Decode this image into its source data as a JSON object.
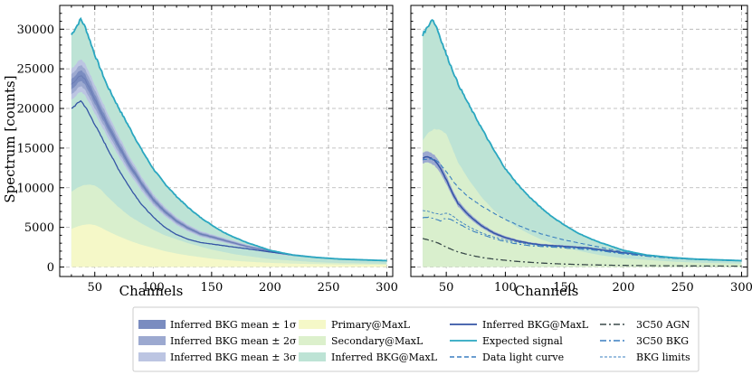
{
  "chart_data": [
    {
      "type": "area",
      "panel": "left",
      "xlabel": "Channels",
      "ylabel": "Spectrum [counts]",
      "xlim": [
        20,
        305
      ],
      "ylim": [
        -1200,
        33000
      ],
      "xticks": [
        50,
        100,
        150,
        200,
        250,
        300
      ],
      "yticks": [
        0,
        5000,
        10000,
        15000,
        20000,
        25000,
        30000
      ],
      "grid": true,
      "series": [
        {
          "name": "Expected signal",
          "x": [
            30,
            35,
            38,
            42,
            50,
            60,
            70,
            80,
            90,
            100,
            110,
            120,
            130,
            140,
            150,
            160,
            170,
            180,
            190,
            200,
            210,
            220,
            240,
            260,
            280,
            300
          ],
          "values": [
            29300,
            30500,
            31300,
            30200,
            26800,
            23100,
            20200,
            17500,
            14800,
            12400,
            10500,
            8900,
            7500,
            6300,
            5300,
            4400,
            3700,
            3100,
            2600,
            2100,
            1800,
            1500,
            1200,
            1000,
            900,
            800
          ]
        },
        {
          "name": "Inferred BKG@MaxL",
          "x": [
            30,
            35,
            38,
            42,
            50,
            60,
            70,
            80,
            90,
            100,
            110,
            120,
            130,
            140,
            150,
            160,
            170,
            180,
            190,
            200,
            210,
            220,
            240,
            260,
            280,
            300
          ],
          "values": [
            20000,
            20600,
            21000,
            20200,
            18000,
            15200,
            12400,
            10000,
            7900,
            6300,
            5000,
            4100,
            3500,
            3100,
            2900,
            2700,
            2500,
            2300,
            2100,
            1900,
            1700,
            1500,
            1200,
            1000,
            900,
            800
          ]
        },
        {
          "name": "Inferred BKG mean",
          "x": [
            30,
            35,
            38,
            42,
            50,
            60,
            70,
            80,
            90,
            100,
            110,
            120,
            130,
            140,
            150,
            160,
            170,
            180,
            190,
            200,
            210,
            220,
            240,
            260,
            280,
            300
          ],
          "values": [
            23000,
            23800,
            24200,
            23600,
            21200,
            18200,
            15400,
            12800,
            10500,
            8500,
            7000,
            5800,
            4900,
            4200,
            3800,
            3400,
            3000,
            2600,
            2300,
            2000,
            1700,
            1500,
            1200,
            1000,
            900,
            800
          ]
        },
        {
          "name": "Secondary@MaxL",
          "x": [
            30,
            35,
            40,
            45,
            50,
            55,
            60,
            70,
            80,
            90,
            100,
            110,
            120,
            130,
            140,
            150,
            160,
            170,
            180,
            190,
            200,
            220,
            240,
            260,
            280,
            300
          ],
          "values": [
            9500,
            10000,
            10300,
            10400,
            10300,
            9800,
            9000,
            7600,
            6400,
            5500,
            4700,
            4000,
            3500,
            3000,
            2600,
            2200,
            1900,
            1600,
            1400,
            1200,
            1000,
            800,
            600,
            500,
            450,
            400
          ]
        },
        {
          "name": "Primary@MaxL",
          "x": [
            30,
            35,
            40,
            45,
            50,
            55,
            60,
            70,
            80,
            90,
            100,
            110,
            120,
            130,
            140,
            150,
            160,
            170,
            180,
            190,
            200,
            220,
            240,
            260,
            280,
            300
          ],
          "values": [
            4800,
            5100,
            5300,
            5400,
            5300,
            5000,
            4600,
            3900,
            3300,
            2800,
            2400,
            2000,
            1700,
            1450,
            1250,
            1050,
            900,
            780,
            680,
            600,
            520,
            420,
            360,
            320,
            300,
            280
          ]
        }
      ]
    },
    {
      "type": "area",
      "panel": "right",
      "xlabel": "Channels",
      "xlim": [
        20,
        305
      ],
      "ylim": [
        -1200,
        33000
      ],
      "xticks": [
        50,
        100,
        150,
        200,
        250,
        300
      ],
      "yticks": [
        0,
        5000,
        10000,
        15000,
        20000,
        25000,
        30000
      ],
      "grid": true,
      "series": [
        {
          "name": "Expected signal",
          "x": [
            30,
            35,
            38,
            42,
            50,
            60,
            70,
            80,
            90,
            100,
            110,
            120,
            130,
            140,
            150,
            160,
            170,
            180,
            190,
            200,
            210,
            220,
            240,
            260,
            280,
            300
          ],
          "values": [
            29300,
            30500,
            31300,
            30200,
            26800,
            23100,
            20200,
            17500,
            14800,
            12400,
            10500,
            8900,
            7500,
            6300,
            5300,
            4400,
            3700,
            3100,
            2600,
            2100,
            1800,
            1500,
            1200,
            1000,
            900,
            800
          ]
        },
        {
          "name": "Secondary@MaxL",
          "x": [
            30,
            35,
            40,
            45,
            50,
            55,
            60,
            70,
            80,
            90,
            100,
            110,
            120,
            130,
            140,
            150,
            160,
            170,
            180,
            190,
            200,
            220,
            240,
            260,
            280,
            300
          ],
          "values": [
            16000,
            17000,
            17400,
            17300,
            16800,
            15000,
            13200,
            10800,
            8800,
            7200,
            6000,
            5000,
            4200,
            3500,
            3000,
            2500,
            2100,
            1800,
            1500,
            1300,
            1100,
            900,
            700,
            550,
            480,
            420
          ]
        },
        {
          "name": "Inferred BKG@MaxL",
          "x": [
            30,
            35,
            40,
            45,
            50,
            55,
            60,
            70,
            80,
            90,
            100,
            110,
            120,
            130,
            140,
            150,
            160,
            170,
            180,
            190,
            200,
            220,
            240,
            260,
            280,
            300
          ],
          "values": [
            13800,
            13900,
            13500,
            12500,
            11000,
            9400,
            8000,
            6400,
            5200,
            4300,
            3700,
            3300,
            3000,
            2800,
            2700,
            2600,
            2500,
            2400,
            2200,
            2000,
            1800,
            1500,
            1200,
            1000,
            900,
            800
          ]
        },
        {
          "name": "Data light curve",
          "x": [
            30,
            35,
            40,
            45,
            50,
            55,
            60,
            70,
            80,
            90,
            100,
            110,
            120,
            130,
            140,
            150,
            160,
            170,
            180,
            190,
            200,
            220,
            240,
            260,
            280,
            300
          ],
          "values": [
            13500,
            13700,
            13600,
            13000,
            12000,
            11000,
            10000,
            8700,
            7700,
            6800,
            6000,
            5300,
            4700,
            4200,
            3800,
            3400,
            3100,
            2800,
            2500,
            2200,
            1900,
            1500,
            1200,
            1000,
            900,
            800
          ]
        },
        {
          "name": "BKG limits",
          "x": [
            30,
            35,
            40,
            45,
            50,
            55,
            60,
            70,
            80,
            90,
            100,
            110,
            120,
            130,
            140,
            150,
            160,
            170,
            180,
            190,
            200,
            220,
            240,
            260,
            280,
            300
          ],
          "values": [
            7100,
            7000,
            6800,
            6600,
            6800,
            6500,
            5900,
            5000,
            4300,
            3800,
            3400,
            3100,
            2900,
            2700,
            2600,
            2500,
            2400,
            2300,
            2100,
            1900,
            1700,
            1400,
            1150,
            950,
            850,
            780
          ]
        },
        {
          "name": "3C50 BKG",
          "x": [
            30,
            35,
            40,
            45,
            50,
            55,
            60,
            70,
            80,
            90,
            100,
            110,
            120,
            130,
            140,
            150,
            160,
            170,
            180,
            190,
            200,
            220,
            240,
            260,
            280,
            300
          ],
          "values": [
            6200,
            6300,
            6100,
            5800,
            6200,
            5900,
            5500,
            4700,
            4100,
            3600,
            3200,
            2900,
            2700,
            2600,
            2500,
            2400,
            2300,
            2200,
            2050,
            1850,
            1650,
            1350,
            1100,
            950,
            850,
            780
          ]
        },
        {
          "name": "3C50 AGN",
          "x": [
            30,
            35,
            40,
            45,
            50,
            55,
            60,
            70,
            80,
            90,
            100,
            110,
            120,
            130,
            140,
            150,
            160,
            170,
            180,
            190,
            200,
            220,
            240,
            260,
            280,
            300
          ],
          "values": [
            3600,
            3400,
            3200,
            2900,
            2500,
            2200,
            1900,
            1500,
            1200,
            1000,
            850,
            700,
            600,
            500,
            430,
            370,
            320,
            280,
            250,
            220,
            200,
            170,
            150,
            130,
            120,
            110
          ]
        }
      ]
    }
  ],
  "legend": {
    "col1": [
      "Inferred BKG mean ± 1σ",
      "Inferred BKG mean ± 2σ",
      "Inferred BKG mean ± 3σ"
    ],
    "col2": [
      "Primary@MaxL",
      "Secondary@MaxL",
      "Inferred BKG@MaxL"
    ],
    "col3": [
      "Inferred BKG@MaxL",
      "Expected signal",
      "Data light curve"
    ],
    "col4": [
      "3C50 AGN",
      "3C50 BKG",
      "BKG limits"
    ]
  },
  "colors": {
    "expected": "#2aa7c0",
    "bkg_line": "#3454a5",
    "band1": "#7a8cc0",
    "band2": "#9ca9d0",
    "band3": "#bcc5e2",
    "primary": "#f5f8c8",
    "secondary": "#dcf0cc",
    "bkg_fill": "#bde3d5",
    "agn": "#3a4a4a"
  }
}
